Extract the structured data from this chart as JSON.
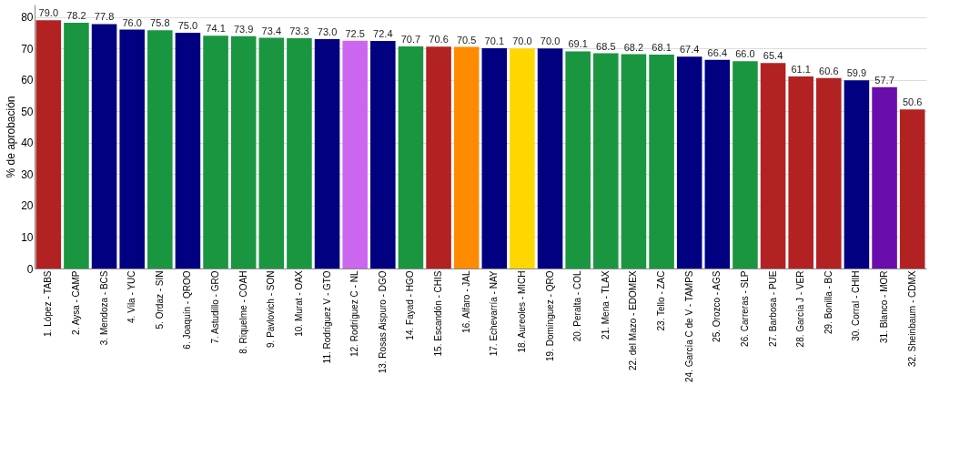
{
  "chart_data": {
    "type": "bar",
    "ylabel": "% de aprobación",
    "categories": [
      "1. López - TABS",
      "2. Aysa - CAMP",
      "3. Mendoza - BCS",
      "4. Vila - YUC",
      "5. Ordaz - SIN",
      "6. Joaquín - QROO",
      "7. Astudillo - GRO",
      "8. Riquelme - COAH",
      "9. Pavlovich - SON",
      "10. Murat - OAX",
      "11. Rodríguez V - GTO",
      "12. Rodríguez C - NL",
      "13. Rosas Aispuro - DGO",
      "14. Fayad - HGO",
      "15. Escandón - CHIS",
      "16. Alfaro - JAL",
      "17. Echevarría - NAY",
      "18. Aureoles - MICH",
      "19. Domínguez - QRO",
      "20. Peralta - COL",
      "21. Mena - TLAX",
      "22. del Mazo - EDOMEX",
      "23. Tello - ZAC",
      "24. García C de V - TAMPS",
      "25. Orozco - AGS",
      "26. Carreras - SLP",
      "27. Barbosa - PUE",
      "28. García J - VER",
      "29. Bonilla - BC",
      "30. Corral - CHIH",
      "31. Blanco - MOR",
      "32. Sheinbaum - CDMX"
    ],
    "values": [
      79.0,
      78.2,
      77.8,
      76.0,
      75.8,
      75.0,
      74.1,
      73.9,
      73.4,
      73.3,
      73.0,
      72.5,
      72.4,
      70.7,
      70.6,
      70.5,
      70.1,
      70.0,
      70.0,
      69.1,
      68.5,
      68.2,
      68.1,
      67.4,
      66.4,
      66.0,
      65.4,
      61.1,
      60.6,
      59.9,
      57.7,
      50.6
    ],
    "colors": [
      "#b22222",
      "#1a9641",
      "#000080",
      "#000080",
      "#1a9641",
      "#000080",
      "#1a9641",
      "#1a9641",
      "#1a9641",
      "#1a9641",
      "#000080",
      "#cc66ee",
      "#000080",
      "#1a9641",
      "#b22222",
      "#ff8c00",
      "#000080",
      "#ffd700",
      "#000080",
      "#1a9641",
      "#1a9641",
      "#1a9641",
      "#1a9641",
      "#000080",
      "#000080",
      "#1a9641",
      "#b22222",
      "#b22222",
      "#b22222",
      "#000080",
      "#6a0dad",
      "#b22222"
    ],
    "ylim": [
      0,
      84
    ],
    "yticks": [
      0,
      10,
      20,
      30,
      40,
      50,
      60,
      70,
      80
    ],
    "value_labels": [
      "79.0",
      "78.2",
      "77.8",
      "76.0",
      "75.8",
      "75.0",
      "74.1",
      "73.9",
      "73.4",
      "73.3",
      "73.0",
      "72.5",
      "72.4",
      "70.7",
      "70.6",
      "70.5",
      "70.1",
      "70.0",
      "70.0",
      "69.1",
      "68.5",
      "68.2",
      "68.1",
      "67.4",
      "66.4",
      "66.0",
      "65.4",
      "61.1",
      "60.6",
      "59.9",
      "57.7",
      "50.6"
    ],
    "grid": "y"
  }
}
